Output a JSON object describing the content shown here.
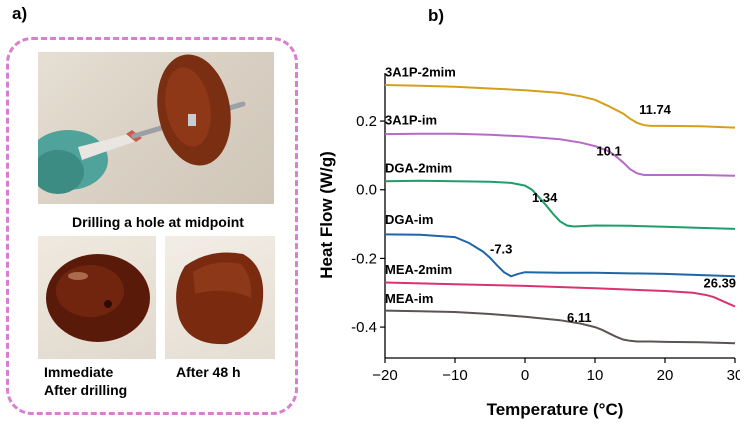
{
  "panel_a": {
    "label": "a)",
    "drill_caption": "Drilling a hole at midpoint",
    "immediate_caption_line1": "Immediate",
    "immediate_caption_line2": "After drilling",
    "after48_caption": "After 48 h",
    "frame_color": "#d77fd0"
  },
  "panel_b": {
    "label": "b)"
  },
  "chart_data": {
    "type": "line",
    "xlabel": "Temperature (°C)",
    "ylabel": "Heat Flow  (W/g)",
    "xlim": [
      -20,
      30
    ],
    "ylim": [
      -0.49,
      0.34
    ],
    "xticks": [
      -20,
      -10,
      0,
      10,
      20,
      30
    ],
    "xtick_labels": [
      "−20",
      "−10",
      "0",
      "10",
      "20",
      "30"
    ],
    "yticks": [
      -0.4,
      -0.2,
      0.0,
      0.2
    ],
    "ytick_labels": [
      "-0.4",
      "-0.2",
      "0.0",
      "0.2"
    ],
    "grid": false,
    "series": [
      {
        "name": "3A1P-2mim",
        "color": "#d4a017",
        "tg_label": "11.74",
        "x": [
          -20,
          -15,
          -10,
          -5,
          0,
          5,
          8,
          10,
          12,
          14,
          15,
          16,
          17,
          18,
          20,
          25,
          30
        ],
        "y": [
          0.305,
          0.303,
          0.3,
          0.295,
          0.29,
          0.282,
          0.272,
          0.262,
          0.243,
          0.222,
          0.207,
          0.195,
          0.188,
          0.186,
          0.186,
          0.185,
          0.181
        ]
      },
      {
        "name": "3A1P-im",
        "color": "#b56bc7",
        "tg_label": "10.1",
        "x": [
          -20,
          -15,
          -10,
          -5,
          0,
          5,
          8,
          10,
          12,
          13,
          14,
          15,
          16,
          17,
          20,
          25,
          30
        ],
        "y": [
          0.162,
          0.163,
          0.163,
          0.16,
          0.155,
          0.147,
          0.137,
          0.127,
          0.112,
          0.097,
          0.08,
          0.06,
          0.048,
          0.043,
          0.043,
          0.043,
          0.041
        ]
      },
      {
        "name": "DGA-2mim",
        "color": "#1f9e6a",
        "tg_label": "1.34",
        "x": [
          -20,
          -15,
          -10,
          -5,
          -2,
          0,
          1,
          2,
          3,
          4,
          5,
          6,
          7,
          10,
          15,
          20,
          25,
          30
        ],
        "y": [
          0.025,
          0.026,
          0.025,
          0.023,
          0.02,
          0.012,
          0.0,
          -0.022,
          -0.045,
          -0.07,
          -0.092,
          -0.104,
          -0.107,
          -0.104,
          -0.105,
          -0.108,
          -0.111,
          -0.114
        ]
      },
      {
        "name": "DGA-im",
        "color": "#1f66a8",
        "tg_label": "-7.3",
        "x": [
          -20,
          -15,
          -10,
          -8,
          -6,
          -5,
          -4,
          -3,
          -2,
          -1,
          0,
          5,
          10,
          20,
          30
        ],
        "y": [
          -0.13,
          -0.131,
          -0.138,
          -0.155,
          -0.18,
          -0.198,
          -0.22,
          -0.24,
          -0.252,
          -0.245,
          -0.24,
          -0.242,
          -0.242,
          -0.245,
          -0.252
        ]
      },
      {
        "name": "MEA-2mim",
        "color": "#d8336f",
        "tg_label": "26.39",
        "x": [
          -20,
          -10,
          0,
          10,
          20,
          24,
          26,
          27,
          28,
          29,
          30
        ],
        "y": [
          -0.27,
          -0.275,
          -0.28,
          -0.287,
          -0.295,
          -0.3,
          -0.307,
          -0.313,
          -0.322,
          -0.331,
          -0.34
        ]
      },
      {
        "name": "MEA-im",
        "color": "#5d5452",
        "tg_label": "6.11",
        "x": [
          -20,
          -15,
          -10,
          -5,
          0,
          5,
          8,
          10,
          11,
          12,
          13,
          14,
          15,
          16,
          18,
          20,
          25,
          30
        ],
        "y": [
          -0.352,
          -0.354,
          -0.356,
          -0.362,
          -0.37,
          -0.38,
          -0.39,
          -0.4,
          -0.408,
          -0.418,
          -0.428,
          -0.436,
          -0.44,
          -0.442,
          -0.442,
          -0.443,
          -0.444,
          -0.447
        ]
      }
    ],
    "annotations": [
      {
        "text": "3A1P-2mim",
        "x": -20,
        "y": 0.33
      },
      {
        "text": "3A1P-im",
        "x": -20,
        "y": 0.19
      },
      {
        "text": "DGA-2mim",
        "x": -20,
        "y": 0.05
      },
      {
        "text": "DGA-im",
        "x": -20,
        "y": -0.1
      },
      {
        "text": "MEA-2mim",
        "x": -20,
        "y": -0.245
      },
      {
        "text": "MEA-im",
        "x": -20,
        "y": -0.33
      },
      {
        "text": "11.74",
        "x": 16.3,
        "y": 0.22
      },
      {
        "text": "10.1",
        "x": 10.2,
        "y": 0.1
      },
      {
        "text": "1.34",
        "x": 1.0,
        "y": -0.035
      },
      {
        "text": "-7.3",
        "x": -5.0,
        "y": -0.185
      },
      {
        "text": "26.39",
        "x": 25.5,
        "y": -0.285
      },
      {
        "text": "6.11",
        "x": 6.0,
        "y": -0.385
      }
    ]
  }
}
